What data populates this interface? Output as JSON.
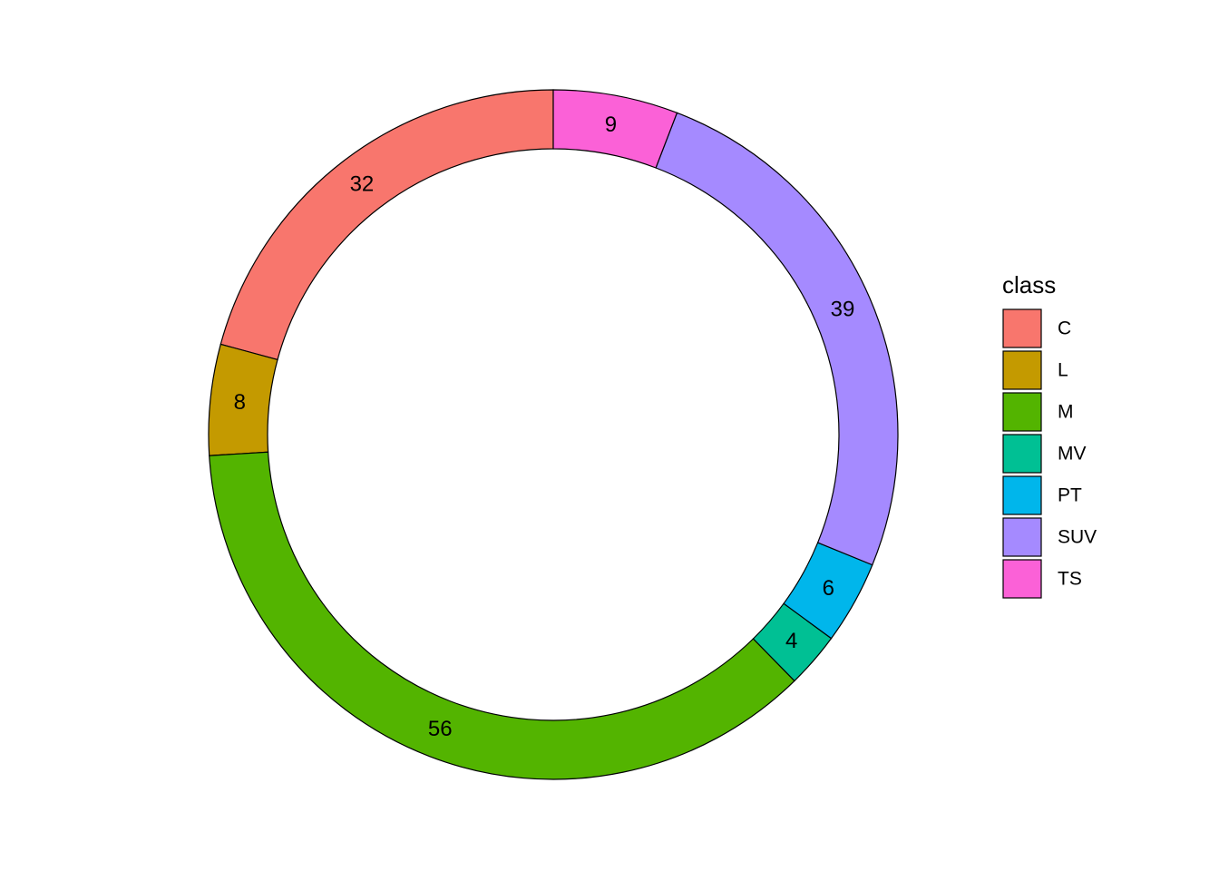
{
  "chart_data": {
    "type": "pie",
    "variant": "donut",
    "legend_title": "class",
    "legend_position": "right",
    "direction": "counterclockwise",
    "start": "top",
    "categories": [
      "C",
      "L",
      "M",
      "MV",
      "PT",
      "SUV",
      "TS"
    ],
    "values": [
      32,
      8,
      56,
      4,
      6,
      39,
      9
    ],
    "labels": [
      "32",
      "8",
      "56",
      "4",
      "6",
      "39",
      "9"
    ],
    "colors": [
      "#F8766D",
      "#C49A00",
      "#53B400",
      "#00C094",
      "#00B6EB",
      "#A58AFF",
      "#FB61D7"
    ],
    "stroke_color": "#000000",
    "background": "#FFFFFF"
  }
}
